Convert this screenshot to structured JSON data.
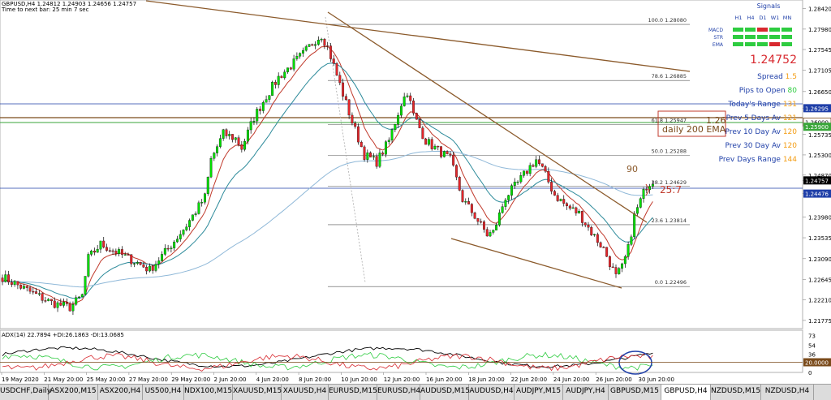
{
  "header": {
    "symbol_line": "GBPUSD,H4  1.24812 1.24903 1.24656 1.24757",
    "time_line": "Time to next bar: 25 min 7 sec"
  },
  "price_axis": {
    "ticks": [
      "1.28420",
      "1.27980",
      "1.27545",
      "1.27105",
      "1.26650",
      "1.26295",
      "1.26000",
      "1.25735",
      "1.25300",
      "1.24870",
      "1.24757",
      "1.24476",
      "1.23980",
      "1.23535",
      "1.23090",
      "1.22645",
      "1.22210",
      "1.21775"
    ],
    "badges": [
      {
        "label": "1.26295",
        "color": "#1f3fa8"
      },
      {
        "label": "1.26000",
        "color": "#ffffff"
      },
      {
        "label": "1.25900",
        "color": "#3aa63a"
      },
      {
        "label": "1.24757",
        "color": "#000000"
      },
      {
        "label": "1.24476",
        "color": "#1f3fa8"
      }
    ]
  },
  "fibonacci": [
    {
      "level": "100.0",
      "price": "1.28080"
    },
    {
      "level": "78.6",
      "price": "1.26885"
    },
    {
      "level": "61.8",
      "price": "1.25947"
    },
    {
      "level": "50.0",
      "price": "1.25288"
    },
    {
      "level": "38.2",
      "price": "1.24629"
    },
    {
      "level": "23.6",
      "price": "1.23814"
    },
    {
      "level": "0.0",
      "price": "1.22496"
    }
  ],
  "annotations": {
    "ema_box": "daily 200 EMA",
    "level_126": "1.26",
    "count_90": "90",
    "timer": "25:7"
  },
  "signals_panel": {
    "title": "Signals",
    "timeframes": [
      "H1",
      "H4",
      "D1",
      "W1",
      "MN"
    ],
    "rows": [
      {
        "name": "MACD",
        "colors": [
          "#2ecc40",
          "#2ecc40",
          "#d8292f",
          "#2ecc40",
          "#2ecc40"
        ]
      },
      {
        "name": "STR",
        "colors": [
          "#2ecc40",
          "#2ecc40",
          "#2ecc40",
          "#2ecc40",
          "#2ecc40"
        ]
      },
      {
        "name": "EMA",
        "colors": [
          "#2ecc40",
          "#2ecc40",
          "#2ecc40",
          "#d8292f",
          "#2ecc40"
        ]
      }
    ],
    "price": "1.24752",
    "stats": [
      {
        "label": "Spread",
        "value": "1.5",
        "color": "#f39c12"
      },
      {
        "label": "Pips to Open",
        "value": "80",
        "color": "#2ecc40"
      },
      {
        "label": "Today's Range",
        "value": "131",
        "color": "#f39c12"
      },
      {
        "label": "Prev 5 Days Av",
        "value": "121",
        "color": "#f39c12"
      },
      {
        "label": "Prev 10 Day Av",
        "value": "120",
        "color": "#f39c12"
      },
      {
        "label": "Prev 30 Day Av",
        "value": "120",
        "color": "#f39c12"
      },
      {
        "label": "Prev Days Range",
        "value": "144",
        "color": "#f39c12"
      }
    ]
  },
  "adx": {
    "label": "ADX(14) 22.7894 +DI:26.1863 -DI:13.0685",
    "ticks": [
      "73",
      "54",
      "36",
      "20.0000",
      "0"
    ]
  },
  "time_axis": [
    "19 May 2020",
    "21 May 20:00",
    "25 May 20:00",
    "27 May 20:00",
    "29 May 20:00",
    "2 Jun 20:00",
    "4 Jun 20:00",
    "8 Jun 20:00",
    "10 Jun 20:00",
    "12 Jun 20:00",
    "16 Jun 20:00",
    "18 Jun 20:00",
    "22 Jun 20:00",
    "24 Jun 20:00",
    "26 Jun 20:00",
    "30 Jun 20:00"
  ],
  "tabs": [
    {
      "label": "USDCHF,Daily",
      "active": false
    },
    {
      "label": "ASX200,M15",
      "active": false
    },
    {
      "label": "ASX200,H4",
      "active": false
    },
    {
      "label": "US500,H4",
      "active": false
    },
    {
      "label": "NDX100,M15",
      "active": false
    },
    {
      "label": "XAUUSD,M15",
      "active": false
    },
    {
      "label": "XAUUSD,H4",
      "active": false
    },
    {
      "label": "EURUSD,M15",
      "active": false
    },
    {
      "label": "EURUSD,H4",
      "active": false
    },
    {
      "label": "AUDUSD,M15",
      "active": false
    },
    {
      "label": "AUDUSD,H4",
      "active": false
    },
    {
      "label": "AUDJPY,M15",
      "active": false
    },
    {
      "label": "AUDJPY,H4",
      "active": false
    },
    {
      "label": "GBPUSD,M15",
      "active": false
    },
    {
      "label": "GBPUSD,H4",
      "active": true
    },
    {
      "label": "NZDUSD,M15",
      "active": false
    },
    {
      "label": "NZDUSD,H4",
      "active": false
    }
  ],
  "chart_data": {
    "type": "candlestick",
    "symbol": "GBPUSD",
    "timeframe": "H4",
    "ylim": [
      1.216,
      1.286
    ],
    "anchors": [
      [
        0,
        1.227
      ],
      [
        10,
        1.2235
      ],
      [
        16,
        1.2215
      ],
      [
        22,
        1.2205
      ],
      [
        26,
        1.223
      ],
      [
        28,
        1.231
      ],
      [
        32,
        1.234
      ],
      [
        38,
        1.232
      ],
      [
        44,
        1.23
      ],
      [
        48,
        1.2285
      ],
      [
        54,
        1.233
      ],
      [
        60,
        1.238
      ],
      [
        66,
        1.244
      ],
      [
        68,
        1.252
      ],
      [
        72,
        1.2575
      ],
      [
        76,
        1.2565
      ],
      [
        78,
        1.2545
      ],
      [
        82,
        1.261
      ],
      [
        86,
        1.2655
      ],
      [
        90,
        1.2695
      ],
      [
        94,
        1.272
      ],
      [
        98,
        1.2745
      ],
      [
        102,
        1.2775
      ],
      [
        104,
        1.2785
      ],
      [
        106,
        1.276
      ],
      [
        110,
        1.268
      ],
      [
        114,
        1.26
      ],
      [
        118,
        1.253
      ],
      [
        122,
        1.2515
      ],
      [
        126,
        1.256
      ],
      [
        130,
        1.264
      ],
      [
        132,
        1.2665
      ],
      [
        134,
        1.2615
      ],
      [
        138,
        1.256
      ],
      [
        142,
        1.254
      ],
      [
        146,
        1.252
      ],
      [
        150,
        1.2435
      ],
      [
        154,
        1.24
      ],
      [
        158,
        1.236
      ],
      [
        160,
        1.2365
      ],
      [
        164,
        1.244
      ],
      [
        168,
        1.247
      ],
      [
        172,
        1.2505
      ],
      [
        174,
        1.252
      ],
      [
        176,
        1.25
      ],
      [
        180,
        1.2445
      ],
      [
        184,
        1.242
      ],
      [
        188,
        1.2405
      ],
      [
        192,
        1.2365
      ],
      [
        196,
        1.233
      ],
      [
        198,
        1.23
      ],
      [
        200,
        1.227
      ],
      [
        202,
        1.229
      ],
      [
        204,
        1.233
      ],
      [
        206,
        1.24
      ],
      [
        210,
        1.2465
      ],
      [
        212,
        1.2476
      ]
    ],
    "bar_count": 213,
    "moving_averages": [
      "fast EMA (red)",
      "slow EMA (teal)",
      "200 EMA (light blue)"
    ]
  }
}
